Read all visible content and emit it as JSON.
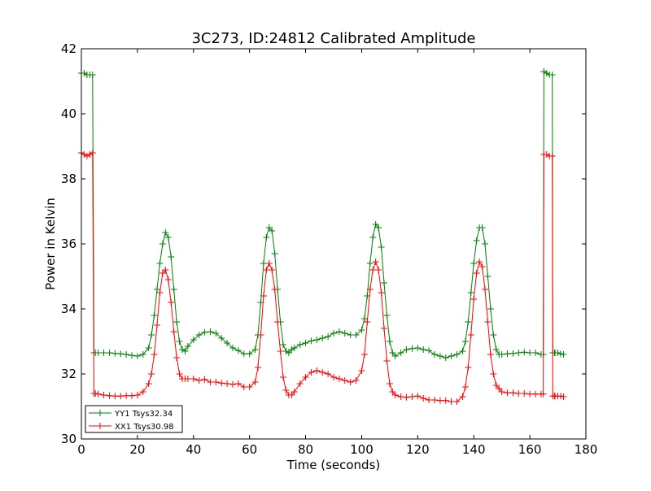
{
  "chart_data": {
    "type": "line",
    "title": "3C273, ID:24812 Calibrated Amplitude",
    "xlabel": "Time (seconds)",
    "ylabel": "Power in Kelvin",
    "xlim": [
      0,
      180
    ],
    "ylim": [
      30,
      42
    ],
    "xticks": [
      0,
      20,
      40,
      60,
      80,
      100,
      120,
      140,
      160,
      180
    ],
    "yticks": [
      30,
      32,
      34,
      36,
      38,
      40,
      42
    ],
    "grid": false,
    "legend_position": "lower-left",
    "marker": "plus",
    "series": [
      {
        "name": "YY1 Tsys32.34",
        "color": "#008000",
        "x": [
          0,
          1,
          2,
          3,
          4,
          4.5,
          5,
          6,
          8,
          10,
          12,
          14,
          16,
          18,
          20,
          22,
          24,
          25,
          26,
          27,
          28,
          29,
          30,
          31,
          32,
          33,
          34,
          35,
          36,
          37,
          38,
          40,
          42,
          44,
          46,
          48,
          50,
          52,
          54,
          56,
          58,
          60,
          62,
          63,
          64,
          65,
          66,
          67,
          68,
          69,
          70,
          71,
          72,
          73,
          74,
          75,
          76,
          78,
          80,
          82,
          84,
          86,
          88,
          90,
          92,
          94,
          96,
          98,
          100,
          101,
          102,
          103,
          104,
          105,
          106,
          107,
          108,
          109,
          110,
          111,
          112,
          114,
          116,
          118,
          120,
          122,
          124,
          126,
          128,
          130,
          132,
          134,
          136,
          137,
          138,
          139,
          140,
          141,
          142,
          143,
          144,
          145,
          146,
          147,
          148,
          149,
          150,
          152,
          154,
          156,
          158,
          160,
          162,
          164,
          164.8,
          165,
          166,
          167,
          168,
          168.2,
          168.8,
          169,
          170,
          171,
          172
        ],
        "y": [
          41.25,
          41.25,
          41.2,
          41.2,
          41.2,
          32.65,
          32.65,
          32.65,
          32.65,
          32.65,
          32.63,
          32.62,
          32.6,
          32.57,
          32.55,
          32.6,
          32.8,
          33.2,
          33.8,
          34.6,
          35.4,
          36.0,
          36.35,
          36.2,
          35.6,
          34.6,
          33.6,
          33.0,
          32.75,
          32.7,
          32.85,
          33.05,
          33.2,
          33.28,
          33.3,
          33.25,
          33.1,
          32.95,
          32.8,
          32.72,
          32.62,
          32.62,
          32.75,
          33.2,
          34.2,
          35.4,
          36.2,
          36.5,
          36.4,
          35.7,
          34.6,
          33.6,
          32.9,
          32.7,
          32.65,
          32.75,
          32.8,
          32.9,
          32.95,
          33.02,
          33.05,
          33.1,
          33.15,
          33.25,
          33.3,
          33.25,
          33.2,
          33.2,
          33.35,
          33.7,
          34.4,
          35.4,
          36.2,
          36.6,
          36.5,
          35.9,
          34.8,
          33.8,
          33.0,
          32.65,
          32.55,
          32.65,
          32.75,
          32.78,
          32.8,
          32.75,
          32.72,
          32.6,
          32.55,
          32.5,
          32.55,
          32.6,
          32.7,
          33.0,
          33.6,
          34.5,
          35.4,
          36.1,
          36.5,
          36.5,
          36.0,
          35.0,
          34.0,
          33.2,
          32.75,
          32.6,
          32.6,
          32.62,
          32.63,
          32.65,
          32.67,
          32.65,
          32.65,
          32.6,
          32.6,
          41.3,
          41.25,
          41.2,
          41.2,
          32.65,
          32.65,
          32.65,
          32.65,
          32.62,
          32.6
        ]
      },
      {
        "name": "XX1 Tsys30.98",
        "color": "#ff0000",
        "x": [
          0,
          1,
          2,
          3,
          4,
          4.5,
          5,
          6,
          8,
          10,
          12,
          14,
          16,
          18,
          20,
          22,
          24,
          25,
          26,
          27,
          28,
          29,
          30,
          31,
          32,
          33,
          34,
          35,
          36,
          37,
          38,
          40,
          42,
          44,
          46,
          48,
          50,
          52,
          54,
          56,
          58,
          60,
          62,
          63,
          64,
          65,
          66,
          67,
          68,
          69,
          70,
          71,
          72,
          73,
          74,
          75,
          76,
          78,
          80,
          82,
          84,
          86,
          88,
          90,
          92,
          94,
          96,
          98,
          100,
          101,
          102,
          103,
          104,
          105,
          106,
          107,
          108,
          109,
          110,
          111,
          112,
          114,
          116,
          118,
          120,
          122,
          124,
          126,
          128,
          130,
          132,
          134,
          136,
          137,
          138,
          139,
          140,
          141,
          142,
          143,
          144,
          145,
          146,
          147,
          148,
          149,
          150,
          152,
          154,
          156,
          158,
          160,
          162,
          164,
          164.8,
          165,
          166,
          167,
          168,
          168.2,
          168.8,
          169,
          170,
          171,
          172
        ],
        "y": [
          38.8,
          38.75,
          38.7,
          38.75,
          38.8,
          31.4,
          31.4,
          31.38,
          31.35,
          31.33,
          31.32,
          31.32,
          31.33,
          31.33,
          31.35,
          31.45,
          31.7,
          32.0,
          32.6,
          33.5,
          34.5,
          35.1,
          35.2,
          34.9,
          34.2,
          33.3,
          32.5,
          32.0,
          31.85,
          31.85,
          31.85,
          31.85,
          31.8,
          31.83,
          31.75,
          31.75,
          31.72,
          31.7,
          31.68,
          31.7,
          31.6,
          31.6,
          31.75,
          32.2,
          33.2,
          34.4,
          35.2,
          35.4,
          35.2,
          34.6,
          33.6,
          32.7,
          31.9,
          31.5,
          31.35,
          31.35,
          31.45,
          31.7,
          31.9,
          32.05,
          32.1,
          32.05,
          32.0,
          31.9,
          31.85,
          31.8,
          31.75,
          31.8,
          32.1,
          32.6,
          33.6,
          34.6,
          35.2,
          35.45,
          35.2,
          34.5,
          33.4,
          32.4,
          31.7,
          31.45,
          31.35,
          31.3,
          31.28,
          31.3,
          31.32,
          31.25,
          31.2,
          31.2,
          31.18,
          31.18,
          31.15,
          31.15,
          31.3,
          31.6,
          32.2,
          33.2,
          34.3,
          35.1,
          35.45,
          35.3,
          34.6,
          33.6,
          32.6,
          32.0,
          31.65,
          31.55,
          31.45,
          31.42,
          31.42,
          31.4,
          31.4,
          31.38,
          31.38,
          31.38,
          31.38,
          38.75,
          38.75,
          38.7,
          38.7,
          31.32,
          31.32,
          31.32,
          31.32,
          31.32,
          31.3
        ]
      }
    ]
  }
}
